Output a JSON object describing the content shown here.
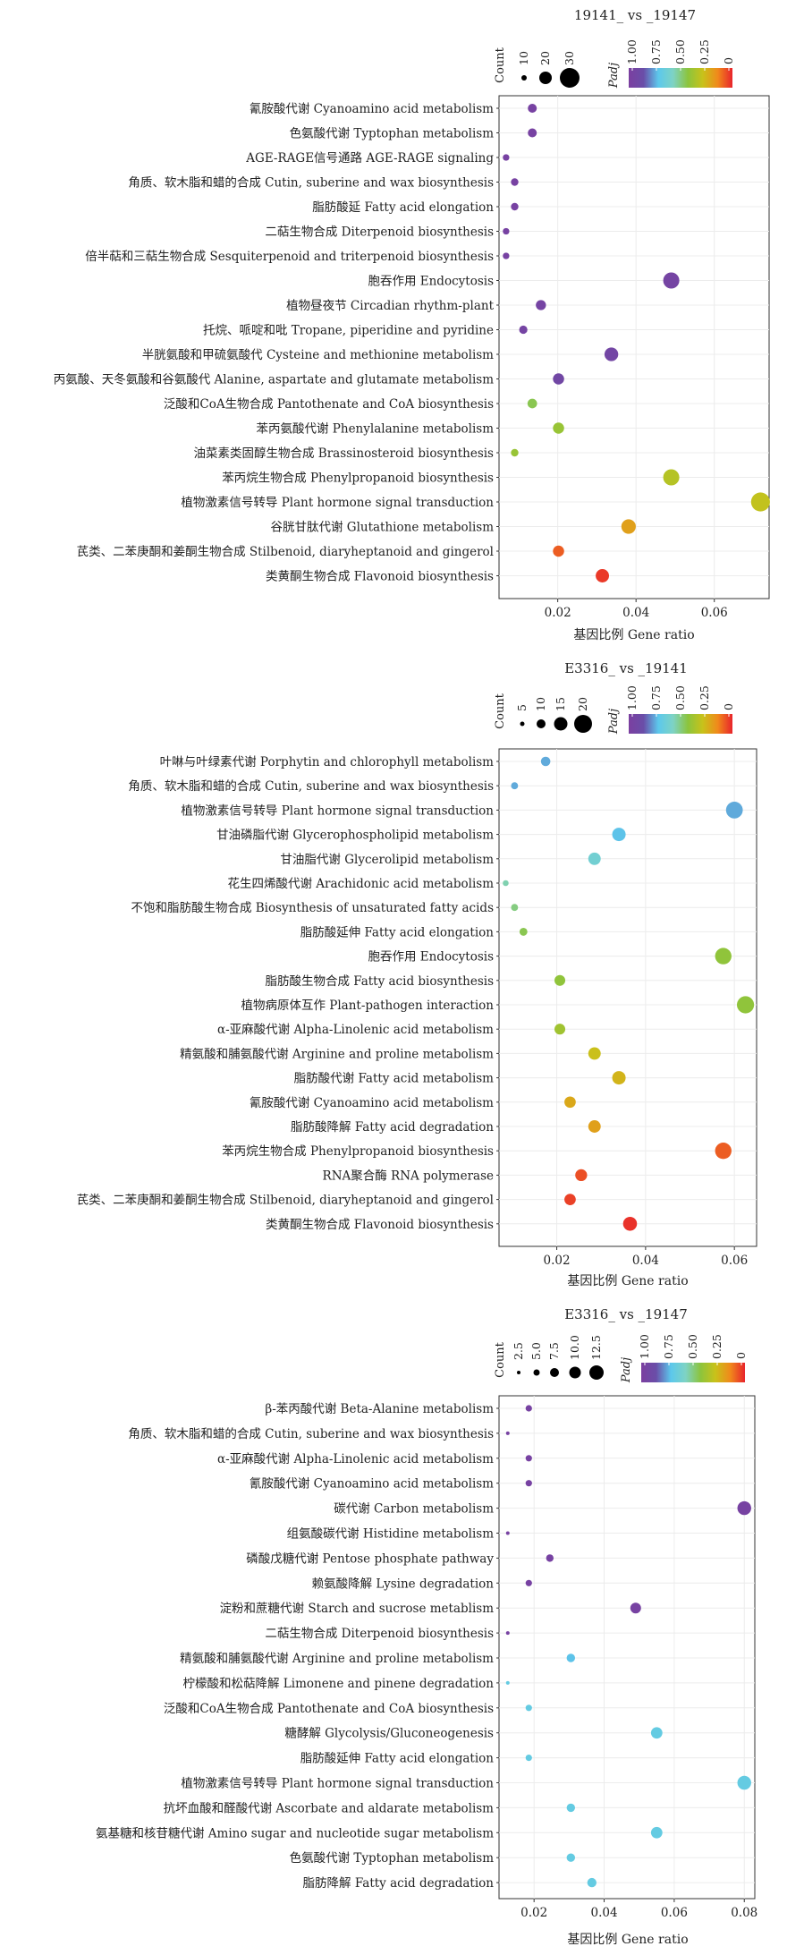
{
  "colors": {
    "scale": [
      "#7b3fa0",
      "#6a4ea8",
      "#5cc8ec",
      "#7ed3c4",
      "#8cc43d",
      "#c8c21a",
      "#f08a1b",
      "#e8242c"
    ],
    "panel_border": "#333333",
    "grid": "#ececec",
    "text": "#222222"
  },
  "chart_data": [
    {
      "type": "scatter",
      "title": "19141_ vs _19147",
      "xlabel": "基因比例 Gene ratio",
      "size_legend_title": "Count",
      "size_legend_values": [
        10,
        20,
        30
      ],
      "color_legend_title": "Padj",
      "color_legend_ticks": [
        "1.00",
        "0.75",
        "0.50",
        "0.25",
        "0"
      ],
      "xlim": [
        0.005,
        0.074
      ],
      "xticks": [
        0.02,
        0.04,
        0.06
      ],
      "xtick_labels": [
        "0.02",
        "0.04",
        "0.06"
      ],
      "count_range": [
        1,
        35
      ],
      "points": [
        {
          "label": "氰胺酸代谢 Cyanoamino acid metabolism",
          "x": 0.0135,
          "count": 5,
          "padj": 0.97
        },
        {
          "label": "色氨酸代谢 Typtophan metabolism",
          "x": 0.0135,
          "count": 5,
          "padj": 0.97
        },
        {
          "label": "AGE-RAGE信号通路 AGE-RAGE signaling",
          "x": 0.0068,
          "count": 2,
          "padj": 0.97
        },
        {
          "label": "角质、软木脂和蜡的合成 Cutin, suberine and wax biosynthesis",
          "x": 0.009,
          "count": 3,
          "padj": 0.97
        },
        {
          "label": "脂肪酸延 Fatty acid elongation",
          "x": 0.009,
          "count": 3,
          "padj": 0.97
        },
        {
          "label": "二萜生物合成 Diterpenoid  biosynthesis",
          "x": 0.0068,
          "count": 2,
          "padj": 0.97
        },
        {
          "label": "倍半萜和三萜生物合成 Sesquiterpenoid and triterpenoid biosynthesis",
          "x": 0.0068,
          "count": 2,
          "padj": 0.97
        },
        {
          "label": "胞吞作用 Endocytosis",
          "x": 0.049,
          "count": 22,
          "padj": 0.95
        },
        {
          "label": "植物昼夜节 Circadian rhythm-plant",
          "x": 0.0157,
          "count": 7,
          "padj": 0.95
        },
        {
          "label": "托烷、哌啶和吡 Tropane, piperidine and pyridine",
          "x": 0.0112,
          "count": 4,
          "padj": 0.95
        },
        {
          "label": "半胱氨酸和甲硫氨酸代 Cysteine and methionine metabolism",
          "x": 0.0337,
          "count": 15,
          "padj": 0.93
        },
        {
          "label": "丙氨酸、天冬氨酸和谷氨酸代 Alanine, aspartate and glutamate metabolism",
          "x": 0.0202,
          "count": 9,
          "padj": 0.92
        },
        {
          "label": "泛酸和CoA生物合成 Pantothenate and CoA biosynthesis",
          "x": 0.0135,
          "count": 6,
          "padj": 0.45
        },
        {
          "label": "苯丙氨酸代谢 Phenylalanine metabolism",
          "x": 0.0202,
          "count": 9,
          "padj": 0.4
        },
        {
          "label": "油菜素类固醇生物合成 Brassinosteroid biosynthesis",
          "x": 0.009,
          "count": 3,
          "padj": 0.4
        },
        {
          "label": "苯丙烷生物合成 Phenylpropanoid biosynthesis",
          "x": 0.049,
          "count": 22,
          "padj": 0.33
        },
        {
          "label": "植物激素信号转导 Plant hormone signal transduction",
          "x": 0.0718,
          "count": 32,
          "padj": 0.3
        },
        {
          "label": "谷胱甘肽代谢 Glutathione metabolism",
          "x": 0.0381,
          "count": 17,
          "padj": 0.2
        },
        {
          "label": "芪类、二苯庚酮和姜酮生物合成 Stilbenoid, diaryheptanoid and gingerol",
          "x": 0.0202,
          "count": 9,
          "padj": 0.08
        },
        {
          "label": "类黄酮生物合成 Flavonoid biosynthesis",
          "x": 0.0314,
          "count": 14,
          "padj": 0.03
        }
      ]
    },
    {
      "type": "scatter",
      "title": "E3316_ vs _19141",
      "xlabel": "基因比例 Gene ratio",
      "size_legend_title": "Count",
      "size_legend_values": [
        5,
        10,
        15,
        20
      ],
      "color_legend_title": "Padj",
      "color_legend_ticks": [
        "1.00",
        "0.75",
        "0.50",
        "0.25",
        "0"
      ],
      "xlim": [
        0.007,
        0.065
      ],
      "xticks": [
        0.02,
        0.04,
        0.06
      ],
      "xtick_labels": [
        "0.02",
        "0.04",
        "0.06"
      ],
      "count_range": [
        1,
        24
      ],
      "points": [
        {
          "label": "叶啉与叶绿素代谢 Porphytin and chlorophyll metabolism",
          "x": 0.0175,
          "count": 6,
          "padj": 0.75
        },
        {
          "label": "角质、软木脂和蜡的合成 Cutin, suberine and wax biosynthesis",
          "x": 0.0105,
          "count": 3,
          "padj": 0.75
        },
        {
          "label": "植物激素信号转导 Plant hormone signal transduction",
          "x": 0.06,
          "count": 21,
          "padj": 0.75
        },
        {
          "label": "甘油磷脂代谢 Glycerophospholipid metabolism",
          "x": 0.034,
          "count": 13,
          "padj": 0.72
        },
        {
          "label": "甘油脂代谢 Glycerolipid metabolism",
          "x": 0.0285,
          "count": 11,
          "padj": 0.62
        },
        {
          "label": "花生四烯酸代谢 Arachidonic acid  metabolism",
          "x": 0.0085,
          "count": 2,
          "padj": 0.55
        },
        {
          "label": "不饱和脂肪酸生物合成 Biosynthesis of unsaturated fatty acids",
          "x": 0.0105,
          "count": 3,
          "padj": 0.5
        },
        {
          "label": "脂肪酸延伸 Fatty acid elongation",
          "x": 0.0125,
          "count": 4,
          "padj": 0.45
        },
        {
          "label": "胞吞作用 Endocytosis",
          "x": 0.0575,
          "count": 20,
          "padj": 0.42
        },
        {
          "label": "脂肪酸生物合成 Fatty acid biosynthesis",
          "x": 0.0207,
          "count": 8,
          "padj": 0.42
        },
        {
          "label": "植物病原体互作 Plant-pathogen interaction",
          "x": 0.0625,
          "count": 22,
          "padj": 0.42
        },
        {
          "label": "α-亚麻酸代谢 Alpha-Linolenic acid metabolism",
          "x": 0.0207,
          "count": 8,
          "padj": 0.38
        },
        {
          "label": "精氨酸和脯氨酸代谢 Arginine and proline metabolism",
          "x": 0.0285,
          "count": 11,
          "padj": 0.28
        },
        {
          "label": "脂肪酸代谢 Fatty acid metabolism",
          "x": 0.034,
          "count": 13,
          "padj": 0.25
        },
        {
          "label": "氰胺酸代谢 Cyanoamino acid metabolism",
          "x": 0.023,
          "count": 9,
          "padj": 0.22
        },
        {
          "label": "脂肪酸降解 Fatty acid degradation",
          "x": 0.0285,
          "count": 11,
          "padj": 0.2
        },
        {
          "label": "苯丙烷生物合成 Phenylpropanoid biosynthesis",
          "x": 0.0575,
          "count": 20,
          "padj": 0.08
        },
        {
          "label": "RNA聚合酶 RNA polymerase",
          "x": 0.0255,
          "count": 10,
          "padj": 0.06
        },
        {
          "label": "芪类、二苯庚酮和姜酮生物合成 Stilbenoid, diaryheptanoid and gingerol",
          "x": 0.023,
          "count": 9,
          "padj": 0.04
        },
        {
          "label": "类黄酮生物合成 Flavonoid biosynthesis",
          "x": 0.0365,
          "count": 14,
          "padj": 0.02
        }
      ]
    },
    {
      "type": "scatter",
      "title": "E3316_ vs _19147",
      "xlabel": "基因比例 Gene ratio",
      "size_legend_title": "Count",
      "size_legend_values": [
        2.5,
        5.0,
        7.5,
        10.0,
        12.5
      ],
      "color_legend_title": "Padj",
      "color_legend_ticks": [
        "1.00",
        "0.75",
        "0.50",
        "0.25",
        "0"
      ],
      "xlim": [
        0.01,
        0.083
      ],
      "xticks": [
        0.02,
        0.04,
        0.06,
        0.08
      ],
      "xtick_labels": [
        "0.02",
        "0.04",
        "0.06",
        "0.08"
      ],
      "count_range": [
        1,
        14
      ],
      "points": [
        {
          "label": "β-苯丙酸代谢 Beta-Alanine metabolism",
          "x": 0.0185,
          "count": 3,
          "padj": 0.97
        },
        {
          "label": "角质、软木脂和蜡的合成 Cutin, suberine and wax biosynthesis",
          "x": 0.0125,
          "count": 1,
          "padj": 0.97
        },
        {
          "label": "α-亚麻酸代谢 Alpha-Linolenic acid metabolism",
          "x": 0.0185,
          "count": 3,
          "padj": 0.97
        },
        {
          "label": "氰胺酸代谢 Cyanoamino acid metabolism",
          "x": 0.0185,
          "count": 3,
          "padj": 0.97
        },
        {
          "label": "碳代谢 Carbon metabolism",
          "x": 0.08,
          "count": 13,
          "padj": 0.97
        },
        {
          "label": "组氨酸碳代谢 Histidine metabolism",
          "x": 0.0125,
          "count": 1,
          "padj": 0.97
        },
        {
          "label": "磷酸戊糖代谢 Pentose phosphate pathway",
          "x": 0.0245,
          "count": 4,
          "padj": 0.97
        },
        {
          "label": "赖氨酸降解 Lysine degradation",
          "x": 0.0185,
          "count": 3,
          "padj": 0.97
        },
        {
          "label": "淀粉和蔗糖代谢 Starch and sucrose metablism",
          "x": 0.049,
          "count": 8,
          "padj": 0.97
        },
        {
          "label": "二萜生物合成 Diterpenoid  biosynthesis",
          "x": 0.0125,
          "count": 1,
          "padj": 0.97
        },
        {
          "label": "精氨酸和脯氨酸代谢 Arginine and proline metabolism",
          "x": 0.0305,
          "count": 5,
          "padj": 0.72
        },
        {
          "label": "柠檬酸和松萜降解 Limonene and pinene degradation",
          "x": 0.0125,
          "count": 1,
          "padj": 0.68
        },
        {
          "label": "泛酸和CoA生物合成 Pantothenate and CoA biosynthesis",
          "x": 0.0185,
          "count": 3,
          "padj": 0.68
        },
        {
          "label": "糖酵解 Glycolysis/Gluconeogenesis",
          "x": 0.055,
          "count": 9,
          "padj": 0.68
        },
        {
          "label": "脂肪酸延伸 Fatty acid elongation",
          "x": 0.0185,
          "count": 3,
          "padj": 0.68
        },
        {
          "label": "植物激素信号转导 Plant hormone signal transduction",
          "x": 0.08,
          "count": 13,
          "padj": 0.68
        },
        {
          "label": "抗坏血酸和醛酸代谢 Ascorbate and aldarate metabolism",
          "x": 0.0305,
          "count": 5,
          "padj": 0.68
        },
        {
          "label": "氨基糖和核苷糖代谢 Amino sugar and nucleotide sugar metabolism",
          "x": 0.055,
          "count": 9,
          "padj": 0.68
        },
        {
          "label": "色氨酸代谢 Typtophan metabolism",
          "x": 0.0305,
          "count": 5,
          "padj": 0.68
        },
        {
          "label": "脂肪降解 Fatty acid degradation",
          "x": 0.0365,
          "count": 6,
          "padj": 0.68
        }
      ]
    }
  ]
}
